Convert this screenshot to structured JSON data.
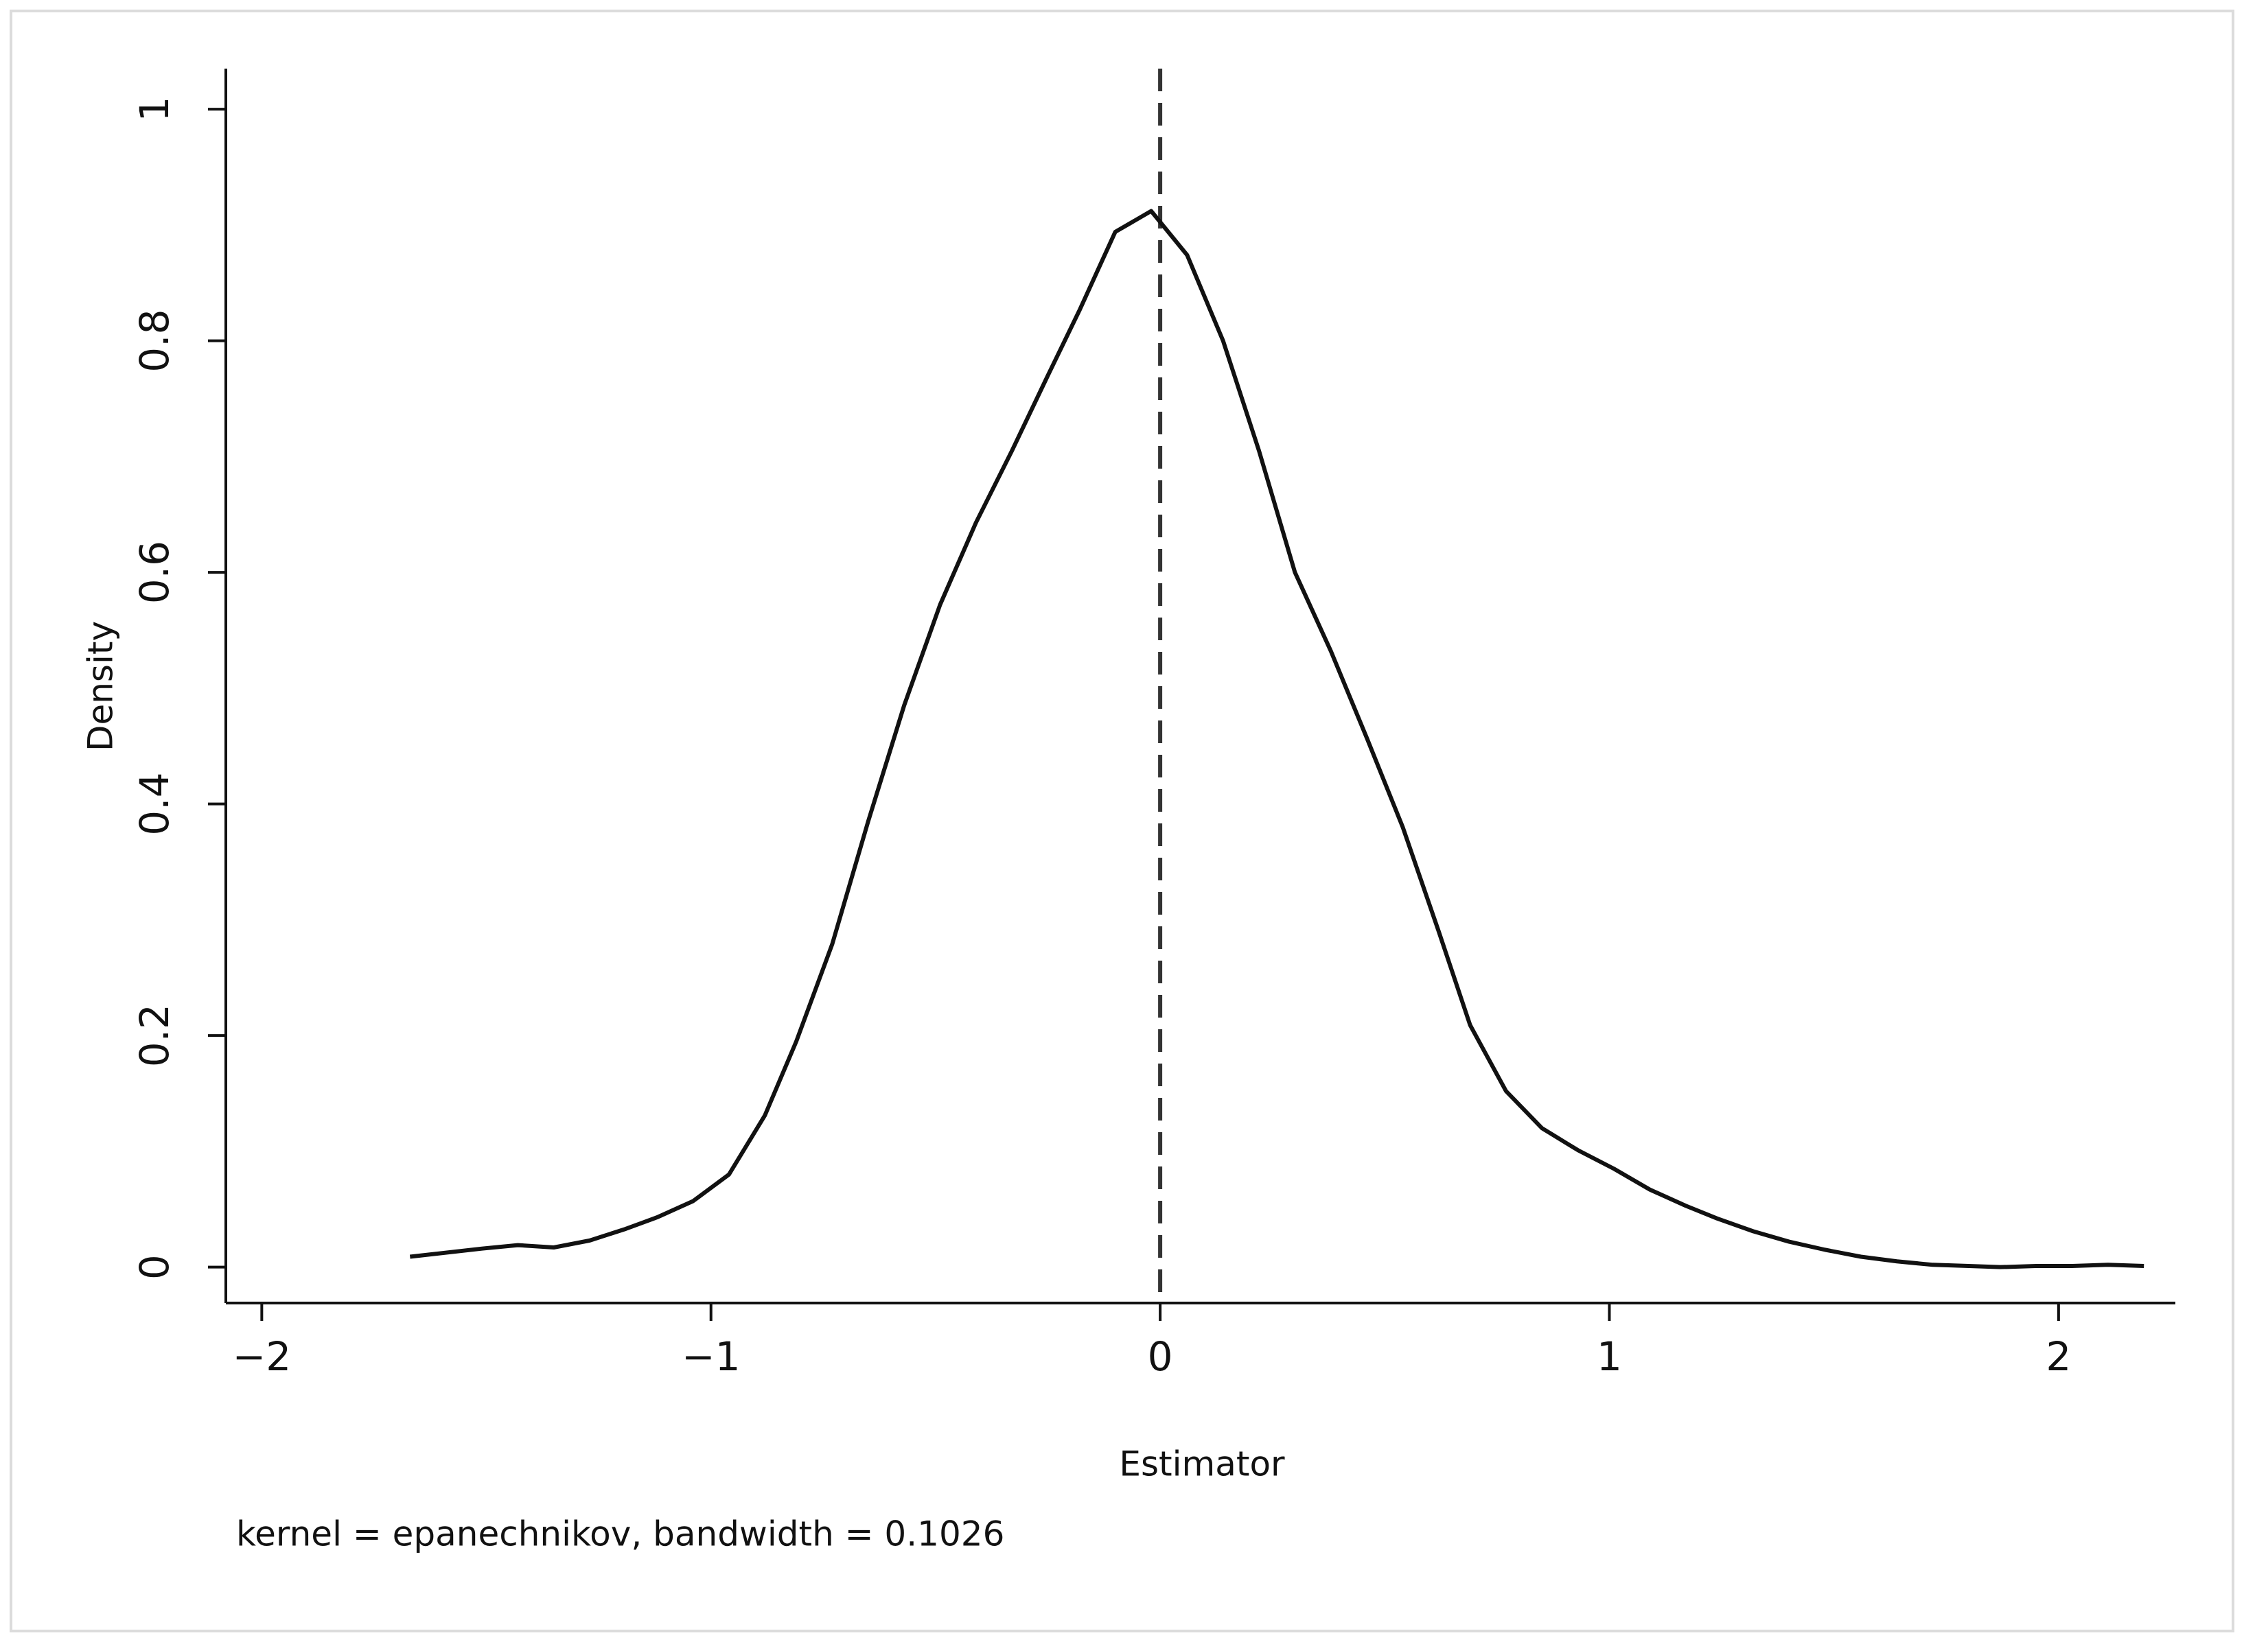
{
  "chart_data": {
    "type": "line",
    "xlabel": "Estimator",
    "ylabel": "Density",
    "note": "kernel = epanechnikov, bandwidth = 0.1026",
    "x": [
      -1.67,
      -1.51,
      -1.43,
      -1.35,
      -1.27,
      -1.19,
      -1.12,
      -1.04,
      -0.96,
      -0.88,
      -0.81,
      -0.73,
      -0.65,
      -0.57,
      -0.49,
      -0.41,
      -0.33,
      -0.25,
      -0.18,
      -0.1,
      -0.02,
      0.06,
      0.14,
      0.22,
      0.3,
      0.38,
      0.46,
      0.54,
      0.62,
      0.69,
      0.77,
      0.85,
      0.93,
      1.01,
      1.09,
      1.17,
      1.24,
      1.32,
      1.4,
      1.48,
      1.56,
      1.64,
      1.72,
      1.8,
      1.87,
      1.95,
      2.03,
      2.11,
      2.19
    ],
    "values": [
      0.009,
      0.016,
      0.019,
      0.017,
      0.023,
      0.033,
      0.043,
      0.057,
      0.08,
      0.131,
      0.195,
      0.279,
      0.385,
      0.485,
      0.572,
      0.643,
      0.705,
      0.77,
      0.826,
      0.894,
      0.912,
      0.874,
      0.8,
      0.705,
      0.6,
      0.532,
      0.457,
      0.38,
      0.29,
      0.209,
      0.152,
      0.12,
      0.101,
      0.085,
      0.067,
      0.053,
      0.042,
      0.031,
      0.022,
      0.015,
      0.009,
      0.005,
      0.002,
      0.001,
      0.0,
      0.001,
      0.001,
      0.002,
      0.001
    ],
    "color": "#111111",
    "xline": 0,
    "xlim": [
      -2.08,
      2.26
    ],
    "ylim": [
      -0.031,
      1.035
    ],
    "xticks": [
      {
        "value": -2,
        "label": "−2"
      },
      {
        "value": -1,
        "label": "−1"
      },
      0,
      1,
      2
    ],
    "yticks": [
      0,
      0.2,
      0.4,
      0.6,
      0.8,
      1
    ]
  }
}
